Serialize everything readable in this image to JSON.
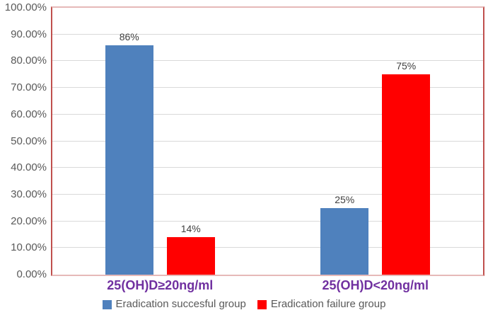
{
  "chart_data": {
    "type": "bar",
    "title": "",
    "xlabel": "",
    "ylabel": "",
    "categories": [
      "25(OH)D≥20ng/ml",
      "25(OH)D<20ng/ml"
    ],
    "series": [
      {
        "name": "Eradication succesful group",
        "color": "#4F81BD",
        "values": [
          86,
          25
        ],
        "data_labels": [
          "86%",
          "25%"
        ]
      },
      {
        "name": "Eradication failure group",
        "color": "#FF0000",
        "values": [
          14,
          75
        ],
        "data_labels": [
          "14%",
          "75%"
        ]
      }
    ],
    "y_ticks": [
      "0.00%",
      "10.00%",
      "20.00%",
      "30.00%",
      "40.00%",
      "50.00%",
      "60.00%",
      "70.00%",
      "80.00%",
      "90.00%",
      "100.00%"
    ],
    "y_tick_values": [
      0,
      10,
      20,
      30,
      40,
      50,
      60,
      70,
      80,
      90,
      100
    ],
    "ylim": [
      0,
      100
    ],
    "grid": true,
    "legend_position": "bottom"
  },
  "colors": {
    "plot_border_sides": "#C0504D",
    "plot_border_top_bottom": "#E6B9B8",
    "gridline": "#D9D9D9",
    "y_tick_text": "#595959",
    "data_label_text": "#404040",
    "category_label_text": "#7030A0",
    "legend_text": "#595959",
    "background": "#FFFFFF"
  }
}
